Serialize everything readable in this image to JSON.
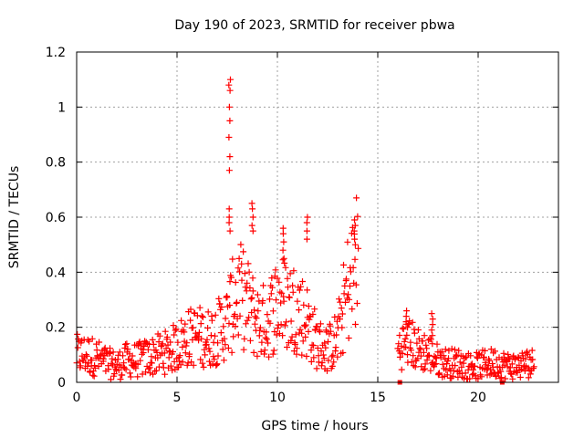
{
  "chart_data": {
    "type": "scatter",
    "title": "Day 190 of 2023, SRMTID for receiver pbwa",
    "xlabel": "GPS time / hours",
    "ylabel": "SRMTID / TECUs",
    "xlim": [
      0,
      24
    ],
    "ylim": [
      0,
      1.2
    ],
    "xticks": [
      0,
      5,
      10,
      15,
      20
    ],
    "yticks": [
      0,
      0.2,
      0.4,
      0.6,
      0.8,
      1,
      1.2
    ],
    "xtick_labels": [
      "0",
      "5",
      "10",
      "15",
      "20"
    ],
    "ytick_labels": [
      "0",
      "0.2",
      "0.4",
      "0.6",
      "0.8",
      "1",
      "1.2"
    ],
    "grid": true,
    "color": "#ff0000",
    "marker": "plus",
    "profile": {
      "x": [
        0,
        0.5,
        1.0,
        1.5,
        2.0,
        2.5,
        3.0,
        3.5,
        4.0,
        4.5,
        5.0,
        5.5,
        6.0,
        6.5,
        7.0,
        7.5,
        8.0,
        8.5,
        9.0,
        9.5,
        10.0,
        10.5,
        11.0,
        11.5,
        12.0,
        12.5,
        13.0,
        13.5,
        14.0
      ],
      "y": [
        0.1,
        0.1,
        0.09,
        0.07,
        0.06,
        0.08,
        0.08,
        0.09,
        0.1,
        0.11,
        0.13,
        0.16,
        0.17,
        0.16,
        0.18,
        0.22,
        0.33,
        0.28,
        0.22,
        0.22,
        0.3,
        0.28,
        0.27,
        0.22,
        0.14,
        0.12,
        0.16,
        0.34,
        0.45
      ]
    },
    "profile2": {
      "x": [
        16.0,
        16.5,
        17.0,
        17.5,
        18.0,
        18.5,
        19.0,
        19.5,
        20.0,
        20.5,
        21.0,
        21.5,
        22.0,
        22.5,
        22.8
      ],
      "y": [
        0.12,
        0.15,
        0.12,
        0.11,
        0.08,
        0.07,
        0.07,
        0.06,
        0.06,
        0.07,
        0.07,
        0.06,
        0.06,
        0.07,
        0.07
      ]
    },
    "peaks": [
      {
        "x": 7.62,
        "y": [
          1.1,
          1.08,
          1.06,
          1.0,
          0.95,
          0.89,
          0.82,
          0.77,
          0.63,
          0.6,
          0.58,
          0.55
        ]
      },
      {
        "x": 8.75,
        "y": [
          0.65,
          0.63,
          0.6,
          0.57,
          0.55
        ]
      },
      {
        "x": 10.3,
        "y": [
          0.56,
          0.54,
          0.51,
          0.48,
          0.45
        ]
      },
      {
        "x": 11.5,
        "y": [
          0.6,
          0.58,
          0.55,
          0.52
        ]
      },
      {
        "x": 13.85,
        "y": [
          0.59,
          0.57,
          0.55,
          0.52,
          0.5
        ]
      },
      {
        "x": 16.45,
        "y": [
          0.26,
          0.24,
          0.22,
          0.2
        ]
      },
      {
        "x": 17.7,
        "y": [
          0.25,
          0.23,
          0.21,
          0.19,
          0.17
        ]
      }
    ],
    "zero_markers": {
      "x": [
        16.1,
        21.2
      ],
      "y": [
        0,
        0
      ]
    },
    "gap": [
      14.2,
      15.95
    ]
  }
}
